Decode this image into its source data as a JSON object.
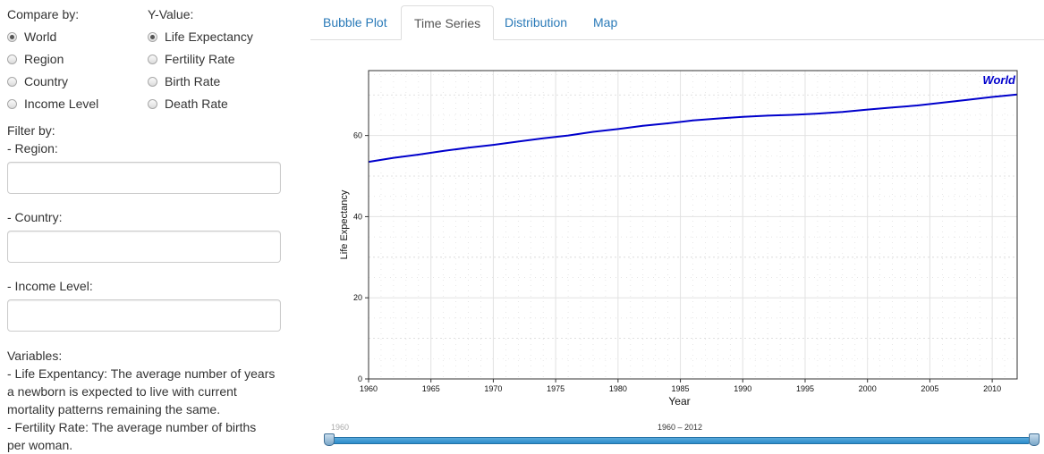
{
  "sidebar": {
    "compare_label": "Compare by:",
    "compare_options": [
      "World",
      "Region",
      "Country",
      "Income Level"
    ],
    "compare_selected": "World",
    "yvalue_label": "Y-Value:",
    "yvalue_options": [
      "Life Expectancy",
      "Fertility Rate",
      "Birth Rate",
      "Death Rate"
    ],
    "yvalue_selected": "Life Expectancy",
    "filter_label": "Filter by:",
    "region_label": "- Region:",
    "region_value": "",
    "country_label": "- Country:",
    "country_value": "",
    "income_label": "- Income Level:",
    "income_value": "",
    "variables_label": "Variables:",
    "variables_lines": [
      "- Life Expentancy: The average number of years",
      "a newborn is expected to live with current",
      "mortality patterns remaining the same.",
      "- Fertility Rate: The average number of births",
      "per woman."
    ]
  },
  "tabs": [
    {
      "label": "Bubble Plot",
      "active": false
    },
    {
      "label": "Time Series",
      "active": true
    },
    {
      "label": "Distribution",
      "active": false
    },
    {
      "label": "Map",
      "active": false
    }
  ],
  "slider": {
    "min_label": "1960",
    "range_label": "1960 – 2012",
    "min": 1960,
    "max": 2012,
    "low": 1960,
    "high": 2012
  },
  "colors": {
    "series": "#0000cc",
    "link": "#2a7ab8"
  },
  "chart_data": {
    "type": "line",
    "xlabel": "Year",
    "ylabel": "Life Expectancy",
    "xlim": [
      1960,
      2012
    ],
    "ylim": [
      0,
      76
    ],
    "xticks": [
      1960,
      1965,
      1970,
      1975,
      1980,
      1985,
      1990,
      1995,
      2000,
      2005,
      2010
    ],
    "yticks": [
      0,
      20,
      40,
      60
    ],
    "grid": true,
    "series": [
      {
        "name": "World",
        "x": [
          1960,
          1962,
          1964,
          1966,
          1968,
          1970,
          1972,
          1974,
          1976,
          1978,
          1980,
          1982,
          1984,
          1986,
          1988,
          1990,
          1992,
          1994,
          1996,
          1998,
          2000,
          2002,
          2004,
          2006,
          2008,
          2010,
          2012
        ],
        "values": [
          53.5,
          54.5,
          55.3,
          56.2,
          57.0,
          57.7,
          58.5,
          59.3,
          60.0,
          60.9,
          61.6,
          62.4,
          63.0,
          63.7,
          64.2,
          64.6,
          64.9,
          65.1,
          65.4,
          65.8,
          66.4,
          66.9,
          67.4,
          68.1,
          68.8,
          69.5,
          70.1
        ]
      }
    ]
  }
}
